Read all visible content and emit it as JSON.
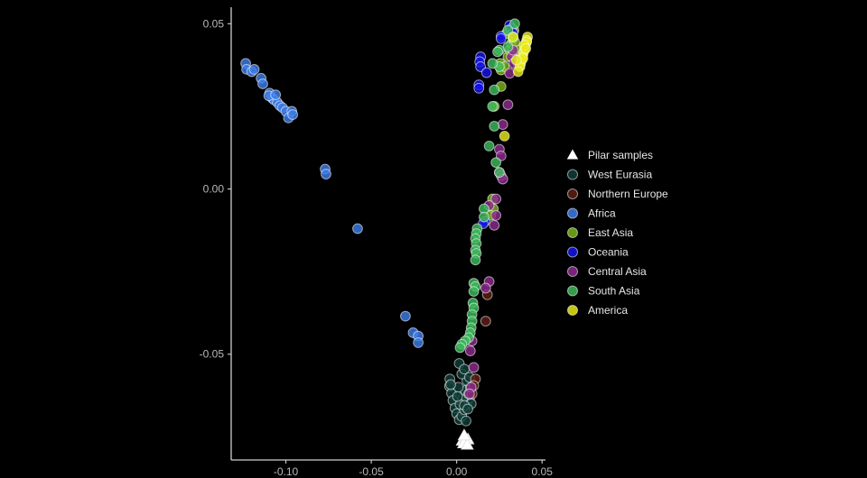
{
  "chart_data": {
    "type": "scatter",
    "title": "",
    "xlabel": "",
    "ylabel": "",
    "xlim": [
      -0.132,
      0.052
    ],
    "ylim": [
      -0.082,
      0.055
    ],
    "x_ticks": [
      -0.1,
      -0.05,
      0.0,
      0.05
    ],
    "x_tick_labels": [
      "-0.10",
      "-0.05",
      "0.00",
      "0.05"
    ],
    "y_ticks": [
      0.05,
      0.0,
      -0.05
    ],
    "y_tick_labels": [
      "0.05",
      "0.00",
      "-0.05"
    ],
    "grid": false,
    "legend_position": "right",
    "series": [
      {
        "name": "Pilar samples",
        "marker": "triangle",
        "color": "#ffffff",
        "points": [
          [
            0.0033,
            -0.0762
          ],
          [
            0.005,
            -0.0752
          ],
          [
            0.0066,
            -0.0758
          ],
          [
            0.0041,
            -0.077
          ],
          [
            0.0062,
            -0.0774
          ],
          [
            0.0044,
            -0.0746
          ]
        ]
      },
      {
        "name": "West Eurasia",
        "marker": "circle",
        "color": "#0f3d37",
        "points": [
          [
            -0.004,
            -0.0575
          ],
          [
            -0.0042,
            -0.0597
          ],
          [
            -0.003,
            -0.0618
          ],
          [
            -0.0022,
            -0.064
          ],
          [
            -0.001,
            -0.0663
          ],
          [
            0.0,
            -0.068
          ],
          [
            0.0015,
            -0.0698
          ],
          [
            0.003,
            -0.0688
          ],
          [
            0.0045,
            -0.0668
          ],
          [
            0.006,
            -0.0646
          ],
          [
            0.0075,
            -0.0633
          ],
          [
            0.0085,
            -0.065
          ],
          [
            0.0035,
            -0.0632
          ],
          [
            0.005,
            -0.061
          ],
          [
            0.007,
            -0.062
          ],
          [
            0.008,
            -0.06
          ],
          [
            0.006,
            -0.058
          ],
          [
            0.003,
            -0.056
          ],
          [
            0.0015,
            -0.0528
          ],
          [
            0.001,
            -0.06
          ],
          [
            0.002,
            -0.0652
          ],
          [
            0.0005,
            -0.0628
          ],
          [
            -0.0035,
            -0.0592
          ],
          [
            0.0045,
            -0.0545
          ],
          [
            0.0075,
            -0.057
          ],
          [
            0.0045,
            -0.0655
          ],
          [
            0.0055,
            -0.0702
          ],
          [
            0.0065,
            -0.0666
          ]
        ]
      },
      {
        "name": "Northern Europe",
        "marker": "circle",
        "color": "#5e1e14",
        "points": [
          [
            0.017,
            -0.04
          ],
          [
            0.018,
            -0.032
          ],
          [
            0.011,
            -0.0575
          ],
          [
            0.01,
            -0.0595
          ],
          [
            0.009,
            -0.062
          ]
        ]
      },
      {
        "name": "Africa",
        "marker": "circle",
        "color": "#3d7de8",
        "points": [
          [
            -0.1235,
            0.038
          ],
          [
            -0.123,
            0.0362
          ],
          [
            -0.12,
            0.0355
          ],
          [
            -0.1185,
            0.0362
          ],
          [
            -0.1145,
            0.0335
          ],
          [
            -0.1135,
            0.0318
          ],
          [
            -0.1095,
            0.029
          ],
          [
            -0.108,
            0.0275
          ],
          [
            -0.107,
            0.027
          ],
          [
            -0.105,
            0.0262
          ],
          [
            -0.1035,
            0.0252
          ],
          [
            -0.102,
            0.0246
          ],
          [
            -0.1,
            0.0235
          ],
          [
            -0.0985,
            0.0215
          ],
          [
            -0.0965,
            0.0235
          ],
          [
            -0.096,
            0.0225
          ],
          [
            -0.11,
            0.0282
          ],
          [
            -0.106,
            0.0285
          ],
          [
            -0.077,
            0.006
          ],
          [
            -0.0765,
            0.0045
          ],
          [
            -0.058,
            -0.012
          ],
          [
            -0.03,
            -0.0385
          ],
          [
            -0.0255,
            -0.0435
          ],
          [
            -0.0225,
            -0.0445
          ],
          [
            -0.0225,
            -0.0465
          ]
        ]
      },
      {
        "name": "East Asia",
        "marker": "circle",
        "color": "#7ab317",
        "points": [
          [
            0.0255,
            0.038
          ],
          [
            0.026,
            0.036
          ],
          [
            0.028,
            0.037
          ],
          [
            0.03,
            0.04
          ],
          [
            0.031,
            0.042
          ],
          [
            0.032,
            0.044
          ],
          [
            0.033,
            0.0455
          ],
          [
            0.0335,
            0.048
          ],
          [
            0.0345,
            0.039
          ],
          [
            0.036,
            0.0375
          ],
          [
            0.037,
            0.037
          ],
          [
            0.029,
            0.047
          ],
          [
            0.026,
            0.031
          ],
          [
            0.021,
            -0.003
          ],
          [
            0.0215,
            -0.006
          ],
          [
            0.02,
            -0.008
          ],
          [
            0.022,
            0.025
          ],
          [
            0.036,
            0.042
          ],
          [
            0.034,
            0.0445
          ]
        ]
      },
      {
        "name": "Oceania",
        "marker": "circle",
        "color": "#1414e8",
        "points": [
          [
            0.031,
            0.0495
          ],
          [
            0.032,
            0.0485
          ],
          [
            0.033,
            0.0472
          ],
          [
            0.026,
            0.0462
          ],
          [
            0.026,
            0.0455
          ],
          [
            0.014,
            0.04
          ],
          [
            0.0135,
            0.0385
          ],
          [
            0.014,
            0.037
          ],
          [
            0.0175,
            0.0352
          ],
          [
            0.013,
            0.0315
          ],
          [
            0.013,
            0.0305
          ],
          [
            0.0165,
            -0.0098
          ],
          [
            0.0155,
            -0.0105
          ]
        ]
      },
      {
        "name": "Central Asia",
        "marker": "circle",
        "color": "#8e2a8e",
        "points": [
          [
            0.031,
            0.035
          ],
          [
            0.032,
            0.04
          ],
          [
            0.0335,
            0.038
          ],
          [
            0.03,
            0.0255
          ],
          [
            0.027,
            0.0195
          ],
          [
            0.025,
            0.005
          ],
          [
            0.026,
            0.004
          ],
          [
            0.027,
            0.003
          ],
          [
            0.025,
            0.012
          ],
          [
            0.026,
            0.01
          ],
          [
            0.023,
            -0.003
          ],
          [
            0.023,
            -0.008
          ],
          [
            0.022,
            -0.011
          ],
          [
            0.019,
            -0.005
          ],
          [
            0.019,
            -0.028
          ],
          [
            0.017,
            -0.03
          ],
          [
            0.009,
            -0.046
          ],
          [
            0.008,
            -0.049
          ],
          [
            0.01,
            -0.054
          ],
          [
            0.0085,
            -0.06
          ],
          [
            0.0075,
            -0.062
          ],
          [
            0.033,
            0.042
          ]
        ]
      },
      {
        "name": "South Asia",
        "marker": "circle",
        "color": "#3dba5b",
        "points": [
          [
            0.034,
            0.05
          ],
          [
            0.033,
            0.046
          ],
          [
            0.03,
            0.043
          ],
          [
            0.025,
            0.037
          ],
          [
            0.025,
            0.042
          ],
          [
            0.021,
            0.038
          ],
          [
            0.022,
            0.03
          ],
          [
            0.022,
            0.019
          ],
          [
            0.019,
            0.013
          ],
          [
            0.023,
            0.008
          ],
          [
            0.025,
            0.005
          ],
          [
            0.016,
            -0.006
          ],
          [
            0.016,
            -0.0085
          ],
          [
            0.012,
            -0.012
          ],
          [
            0.0115,
            -0.0135
          ],
          [
            0.011,
            -0.015
          ],
          [
            0.0115,
            -0.0165
          ],
          [
            0.011,
            -0.0185
          ],
          [
            0.0115,
            -0.0195
          ],
          [
            0.011,
            -0.0215
          ],
          [
            0.01,
            -0.0285
          ],
          [
            0.011,
            -0.0295
          ],
          [
            0.01,
            -0.031
          ],
          [
            0.0095,
            -0.0345
          ],
          [
            0.01,
            -0.036
          ],
          [
            0.009,
            -0.038
          ],
          [
            0.009,
            -0.04
          ],
          [
            0.0085,
            -0.042
          ],
          [
            0.008,
            -0.0435
          ],
          [
            0.007,
            -0.045
          ],
          [
            0.005,
            -0.046
          ],
          [
            0.003,
            -0.047
          ],
          [
            0.002,
            -0.048
          ],
          [
            0.021,
            0.025
          ],
          [
            0.024,
            0.0415
          ],
          [
            0.03,
            0.048
          ]
        ]
      },
      {
        "name": "America",
        "marker": "circle",
        "color": "#e8e817",
        "points": [
          [
            0.0415,
            0.046
          ],
          [
            0.041,
            0.045
          ],
          [
            0.0405,
            0.044
          ],
          [
            0.04,
            0.043
          ],
          [
            0.0395,
            0.042
          ],
          [
            0.039,
            0.041
          ],
          [
            0.0385,
            0.04
          ],
          [
            0.038,
            0.039
          ],
          [
            0.0375,
            0.038
          ],
          [
            0.037,
            0.037
          ],
          [
            0.036,
            0.0355
          ],
          [
            0.041,
            0.0445
          ],
          [
            0.0395,
            0.0435
          ],
          [
            0.0405,
            0.0425
          ],
          [
            0.0388,
            0.0395
          ],
          [
            0.028,
            0.016
          ],
          [
            0.033,
            0.046
          ],
          [
            0.035,
            0.039
          ]
        ]
      }
    ]
  }
}
